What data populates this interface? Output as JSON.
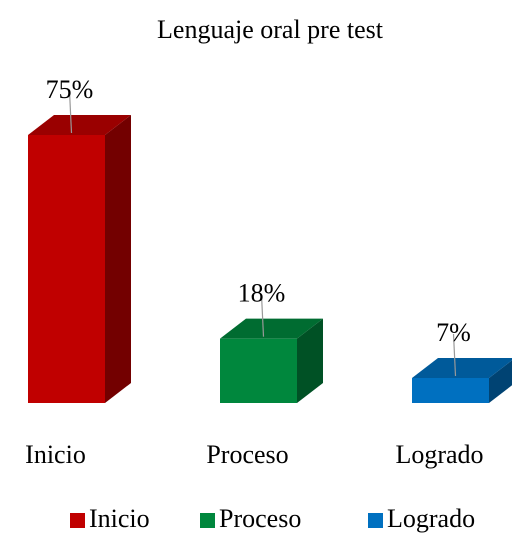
{
  "chart_data": {
    "type": "bar3d",
    "title": "Lenguaje oral pre test",
    "categories": [
      "Inicio",
      "Proceso",
      "Logrado"
    ],
    "values": [
      75,
      18,
      7
    ],
    "value_labels": [
      "75%",
      "18%",
      "7%"
    ],
    "colors": [
      "#c00000",
      "#00873d",
      "#0070c0"
    ],
    "legend": "bottom"
  }
}
